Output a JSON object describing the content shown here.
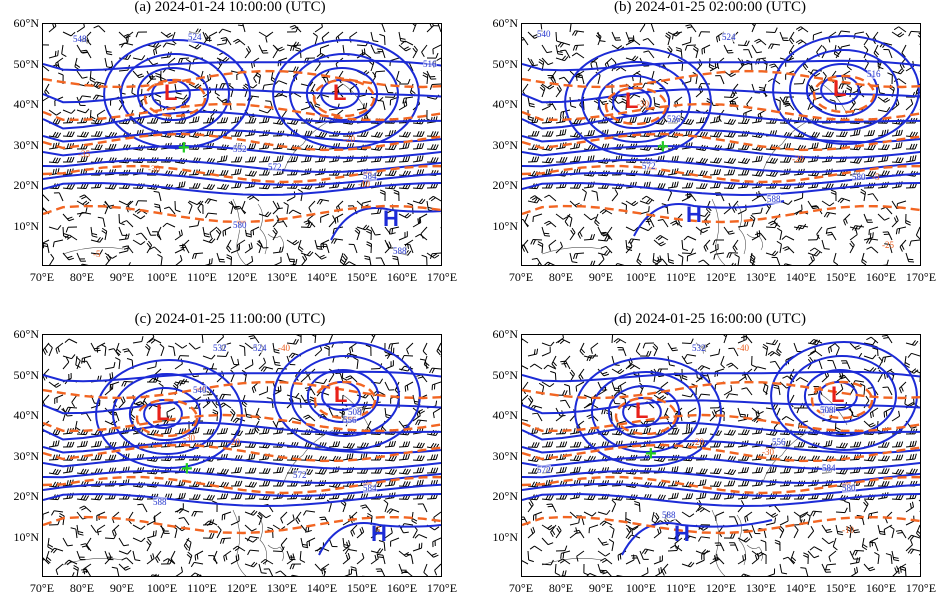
{
  "panels": [
    {
      "title": "(a) 2024-01-24 10:00:00 (UTC)",
      "lows": [
        "L",
        "L"
      ],
      "highs": [
        "H"
      ],
      "height_labels": [
        "548",
        "524",
        "552",
        "572",
        "584",
        "580",
        "588",
        "516"
      ],
      "temp_labels": [
        "-30",
        "-35",
        "-20",
        "-5",
        "-10"
      ]
    },
    {
      "title": "(b) 2024-01-25 02:00:00 (UTC)",
      "lows": [
        "L",
        "L"
      ],
      "highs": [
        "H"
      ],
      "height_labels": [
        "540",
        "524",
        "536",
        "572",
        "588",
        "580",
        "516"
      ],
      "temp_labels": [
        "-30",
        "-20",
        "-5",
        "-25"
      ]
    },
    {
      "title": "(c) 2024-01-25 11:00:00 (UTC)",
      "lows": [
        "L",
        "L"
      ],
      "highs": [
        "H"
      ],
      "height_labels": [
        "532",
        "524",
        "540",
        "556",
        "572",
        "584",
        "588",
        "508"
      ],
      "temp_labels": [
        "-40",
        "-20",
        "-30",
        "-5"
      ]
    },
    {
      "title": "(d) 2024-01-25 16:00:00 (UTC)",
      "lows": [
        "L",
        "L"
      ],
      "highs": [
        "H"
      ],
      "height_labels": [
        "532",
        "524",
        "556",
        "572",
        "584",
        "580",
        "588",
        "508"
      ],
      "temp_labels": [
        "-40",
        "-20",
        "-30",
        "-10"
      ]
    }
  ],
  "y_ticks": [
    "60°N",
    "50°N",
    "40°N",
    "30°N",
    "20°N",
    "10°N"
  ],
  "x_ticks": [
    "70°E",
    "80°E",
    "90°E",
    "100°E",
    "110°E",
    "120°E",
    "130°E",
    "140°E",
    "150°E",
    "160°E",
    "170°E"
  ],
  "colors": {
    "height_contour": "#1c2bd6",
    "temperature_contour": "#f26522",
    "low_center": "#e8211a",
    "high_center": "#1c2bd6",
    "marker": "#22cc22"
  }
}
